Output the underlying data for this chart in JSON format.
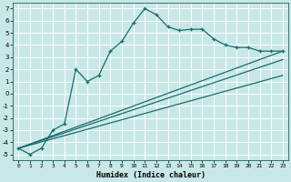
{
  "xlabel": "Humidex (Indice chaleur)",
  "ylabel": "",
  "background_color": "#c8e8e8",
  "grid_color": "#ffffff",
  "line_color": "#1a6b6b",
  "xlim": [
    -0.5,
    23.5
  ],
  "ylim": [
    -5.5,
    7.5
  ],
  "xticks": [
    0,
    1,
    2,
    3,
    4,
    5,
    6,
    7,
    8,
    9,
    10,
    11,
    12,
    13,
    14,
    15,
    16,
    17,
    18,
    19,
    20,
    21,
    22,
    23
  ],
  "yticks": [
    -5,
    -4,
    -3,
    -2,
    -1,
    0,
    1,
    2,
    3,
    4,
    5,
    6,
    7
  ],
  "line1_x": [
    0,
    1,
    2,
    3,
    4,
    5,
    6,
    7,
    8,
    9,
    10,
    11,
    12,
    13,
    14,
    15,
    16,
    17,
    18,
    19,
    20,
    21,
    22,
    23
  ],
  "line1_y": [
    -4.5,
    -5.0,
    -4.5,
    -3.0,
    -2.5,
    2.0,
    1.0,
    1.5,
    3.5,
    4.3,
    5.8,
    7.0,
    6.5,
    5.5,
    5.2,
    5.3,
    5.3,
    4.5,
    4.0,
    3.8,
    3.8,
    3.5,
    3.5,
    3.5
  ],
  "line2_x": [
    0,
    23
  ],
  "line2_y": [
    -4.5,
    1.5
  ],
  "line3_x": [
    0,
    23
  ],
  "line3_y": [
    -4.5,
    2.8
  ],
  "line4_x": [
    0,
    23
  ],
  "line4_y": [
    -4.5,
    3.5
  ]
}
